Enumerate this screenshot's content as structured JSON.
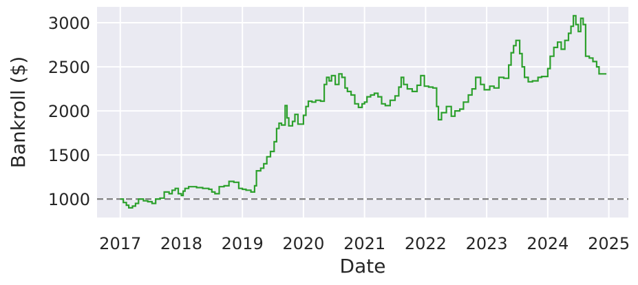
{
  "chart_data": {
    "type": "line",
    "title": "",
    "xlabel": "Date",
    "ylabel": "Bankroll ($)",
    "xlim": [
      2016.62,
      2025.32
    ],
    "ylim": [
      790,
      3180
    ],
    "x_ticks": [
      2017,
      2018,
      2019,
      2020,
      2021,
      2022,
      2023,
      2024,
      2025
    ],
    "x_tick_labels": [
      "2017",
      "2018",
      "2019",
      "2020",
      "2021",
      "2022",
      "2023",
      "2024",
      "2025"
    ],
    "y_ticks": [
      1000,
      1500,
      2000,
      2500,
      3000
    ],
    "y_tick_labels": [
      "1000",
      "1500",
      "2000",
      "2500",
      "3000"
    ],
    "grid": true,
    "background_color": "#eaeaf2",
    "grid_color": "#ffffff",
    "reference_line": {
      "y": 1000,
      "style": "dashed",
      "color": "#808080"
    },
    "series": [
      {
        "color": "#2ca02c",
        "style": "steps-post",
        "points": [
          [
            2017.0,
            1000
          ],
          [
            2017.05,
            960
          ],
          [
            2017.1,
            930
          ],
          [
            2017.14,
            900
          ],
          [
            2017.2,
            920
          ],
          [
            2017.25,
            950
          ],
          [
            2017.3,
            1000
          ],
          [
            2017.38,
            980
          ],
          [
            2017.45,
            970
          ],
          [
            2017.52,
            950
          ],
          [
            2017.58,
            1000
          ],
          [
            2017.65,
            1010
          ],
          [
            2017.72,
            1080
          ],
          [
            2017.8,
            1060
          ],
          [
            2017.85,
            1100
          ],
          [
            2017.9,
            1120
          ],
          [
            2017.95,
            1060
          ],
          [
            2018.0,
            1040
          ],
          [
            2018.03,
            1090
          ],
          [
            2018.06,
            1120
          ],
          [
            2018.12,
            1140
          ],
          [
            2018.25,
            1130
          ],
          [
            2018.35,
            1120
          ],
          [
            2018.45,
            1110
          ],
          [
            2018.5,
            1080
          ],
          [
            2018.55,
            1060
          ],
          [
            2018.62,
            1140
          ],
          [
            2018.7,
            1150
          ],
          [
            2018.78,
            1200
          ],
          [
            2018.86,
            1190
          ],
          [
            2018.94,
            1120
          ],
          [
            2019.0,
            1110
          ],
          [
            2019.06,
            1100
          ],
          [
            2019.14,
            1080
          ],
          [
            2019.2,
            1150
          ],
          [
            2019.23,
            1320
          ],
          [
            2019.3,
            1350
          ],
          [
            2019.35,
            1400
          ],
          [
            2019.4,
            1480
          ],
          [
            2019.46,
            1540
          ],
          [
            2019.52,
            1650
          ],
          [
            2019.56,
            1800
          ],
          [
            2019.6,
            1860
          ],
          [
            2019.64,
            1840
          ],
          [
            2019.7,
            2060
          ],
          [
            2019.73,
            1920
          ],
          [
            2019.76,
            1830
          ],
          [
            2019.82,
            1880
          ],
          [
            2019.86,
            1960
          ],
          [
            2019.91,
            1850
          ],
          [
            2020.0,
            1950
          ],
          [
            2020.04,
            2050
          ],
          [
            2020.08,
            2110
          ],
          [
            2020.14,
            2100
          ],
          [
            2020.2,
            2120
          ],
          [
            2020.28,
            2110
          ],
          [
            2020.34,
            2300
          ],
          [
            2020.38,
            2380
          ],
          [
            2020.42,
            2340
          ],
          [
            2020.46,
            2400
          ],
          [
            2020.52,
            2300
          ],
          [
            2020.58,
            2420
          ],
          [
            2020.63,
            2380
          ],
          [
            2020.68,
            2260
          ],
          [
            2020.72,
            2220
          ],
          [
            2020.78,
            2180
          ],
          [
            2020.84,
            2080
          ],
          [
            2020.9,
            2040
          ],
          [
            2020.96,
            2080
          ],
          [
            2021.0,
            2100
          ],
          [
            2021.04,
            2160
          ],
          [
            2021.1,
            2180
          ],
          [
            2021.16,
            2200
          ],
          [
            2021.22,
            2160
          ],
          [
            2021.28,
            2080
          ],
          [
            2021.34,
            2060
          ],
          [
            2021.42,
            2120
          ],
          [
            2021.5,
            2170
          ],
          [
            2021.56,
            2270
          ],
          [
            2021.6,
            2380
          ],
          [
            2021.64,
            2300
          ],
          [
            2021.7,
            2250
          ],
          [
            2021.78,
            2220
          ],
          [
            2021.86,
            2290
          ],
          [
            2021.92,
            2400
          ],
          [
            2021.98,
            2280
          ],
          [
            2022.05,
            2270
          ],
          [
            2022.12,
            2260
          ],
          [
            2022.18,
            2050
          ],
          [
            2022.21,
            1900
          ],
          [
            2022.26,
            1980
          ],
          [
            2022.34,
            2050
          ],
          [
            2022.42,
            1940
          ],
          [
            2022.48,
            2000
          ],
          [
            2022.56,
            2020
          ],
          [
            2022.62,
            2100
          ],
          [
            2022.7,
            2180
          ],
          [
            2022.76,
            2250
          ],
          [
            2022.82,
            2380
          ],
          [
            2022.9,
            2300
          ],
          [
            2022.96,
            2240
          ],
          [
            2023.05,
            2280
          ],
          [
            2023.12,
            2260
          ],
          [
            2023.2,
            2380
          ],
          [
            2023.28,
            2370
          ],
          [
            2023.36,
            2520
          ],
          [
            2023.4,
            2660
          ],
          [
            2023.44,
            2740
          ],
          [
            2023.48,
            2800
          ],
          [
            2023.54,
            2650
          ],
          [
            2023.58,
            2500
          ],
          [
            2023.62,
            2380
          ],
          [
            2023.68,
            2330
          ],
          [
            2023.75,
            2340
          ],
          [
            2023.84,
            2380
          ],
          [
            2023.9,
            2390
          ],
          [
            2024.0,
            2480
          ],
          [
            2024.04,
            2620
          ],
          [
            2024.1,
            2720
          ],
          [
            2024.16,
            2780
          ],
          [
            2024.22,
            2700
          ],
          [
            2024.28,
            2800
          ],
          [
            2024.34,
            2880
          ],
          [
            2024.38,
            2960
          ],
          [
            2024.42,
            3080
          ],
          [
            2024.46,
            2980
          ],
          [
            2024.5,
            2900
          ],
          [
            2024.54,
            3050
          ],
          [
            2024.58,
            2980
          ],
          [
            2024.62,
            2620
          ],
          [
            2024.68,
            2600
          ],
          [
            2024.74,
            2560
          ],
          [
            2024.8,
            2500
          ],
          [
            2024.84,
            2420
          ],
          [
            2024.88,
            2420
          ],
          [
            2024.96,
            2420
          ]
        ]
      }
    ]
  }
}
